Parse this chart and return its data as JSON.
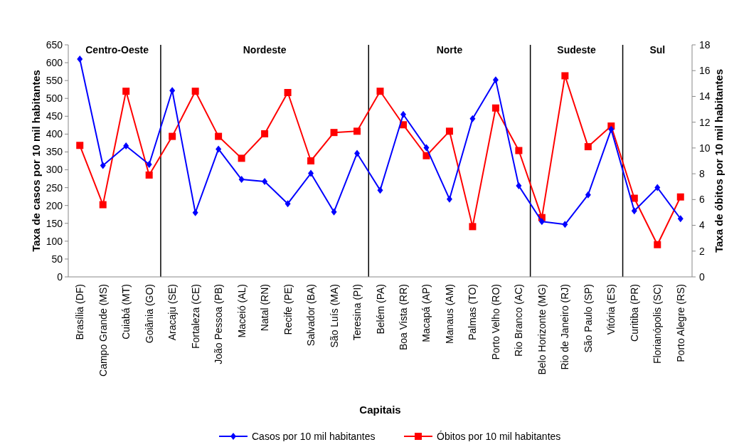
{
  "chart_data": {
    "type": "line",
    "xlabel": "Capitais",
    "ylabel": "Taxa de casos por 10 mil habitantes",
    "y2label": "Taxa de óbitos por 10 mil habitantes",
    "categories": [
      "Brasília (DF)",
      "Campo Grande (MS)",
      "Cuiabá (MT)",
      "Goiânia (GO)",
      "Aracaju (SE)",
      "Fortaleza (CE)",
      "João Pessoa (PB)",
      "Maceió (AL)",
      "Natal (RN)",
      "Recife (PE)",
      "Salvador (BA)",
      "São Luís (MA)",
      "Teresina (PI)",
      "Belém  (PA)",
      "Boa Vista (RR)",
      "Macapá (AP)",
      "Manaus (AM)",
      "Palmas (TO)",
      "Porto Velho (RO)",
      "Rio Branco (AC)",
      "Belo Horizonte (MG)",
      "Rio de Janeiro (RJ)",
      "São Paulo (SP)",
      "Vitória (ES)",
      "Curitiba (PR)",
      "Florianópolis (SC)",
      "Porto Alegre (RS)"
    ],
    "series": [
      {
        "name": "Casos por 10 mil habitantes",
        "color": "#0000ff",
        "marker": "diamond",
        "values": [
          610,
          312,
          367,
          315,
          522,
          180,
          358,
          273,
          267,
          205,
          290,
          182,
          346,
          243,
          455,
          362,
          218,
          443,
          552,
          255,
          155,
          147,
          230,
          413,
          185,
          250,
          163
        ]
      },
      {
        "name": "Óbitos por 10 mil habitantes",
        "color": "#ff0000",
        "marker": "square",
        "axis": "y2",
        "values": [
          10.2,
          5.6,
          14.4,
          7.9,
          10.9,
          14.4,
          10.9,
          9.2,
          11.1,
          14.3,
          9.0,
          11.2,
          11.3,
          14.4,
          11.8,
          9.4,
          11.3,
          3.9,
          13.1,
          9.8,
          4.6,
          15.6,
          10.1,
          11.7,
          6.1,
          2.5,
          6.2
        ]
      }
    ],
    "ylim": [
      0,
      650
    ],
    "yticks": [
      0,
      50,
      100,
      150,
      200,
      250,
      300,
      350,
      400,
      450,
      500,
      550,
      600,
      650
    ],
    "y2lim": [
      0,
      18
    ],
    "y2ticks": [
      0,
      2,
      4,
      6,
      8,
      10,
      12,
      14,
      16,
      18
    ],
    "annotations": [
      "Centro-Oeste",
      "Nordeste",
      "Norte",
      "Sudeste",
      "Sul"
    ],
    "grid": false,
    "legend": "bottom"
  }
}
